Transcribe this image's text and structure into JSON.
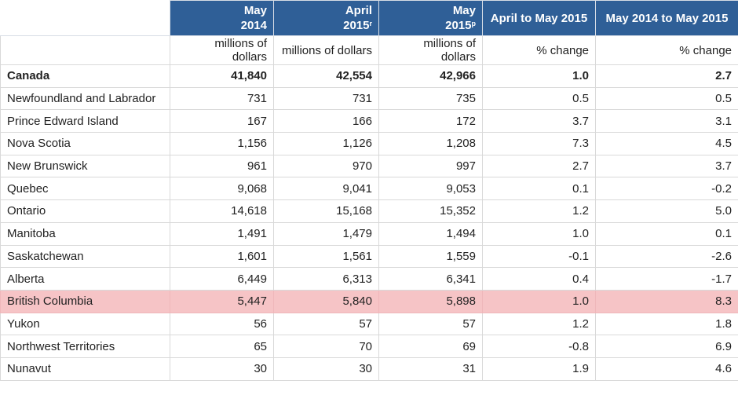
{
  "table": {
    "headers": [
      {
        "line1": "",
        "line2": "",
        "sup": ""
      },
      {
        "line1": "May",
        "line2": "2014",
        "sup": ""
      },
      {
        "line1": "April",
        "line2": "2015",
        "sup": "r"
      },
      {
        "line1": "May",
        "line2": "2015",
        "sup": "p"
      },
      {
        "line1": "April to May 2015",
        "line2": "",
        "sup": ""
      },
      {
        "line1": "May 2014 to May 2015",
        "line2": "",
        "sup": ""
      }
    ],
    "units": [
      "",
      "millions of dollars",
      "millions of dollars",
      "millions of dollars",
      "% change",
      "% change"
    ],
    "rows": [
      {
        "cells": [
          "Canada",
          "41,840",
          "42,554",
          "42,966",
          "1.0",
          "2.7"
        ]
      },
      {
        "cells": [
          "Newfoundland and Labrador",
          "731",
          "731",
          "735",
          "0.5",
          "0.5"
        ]
      },
      {
        "cells": [
          "Prince Edward Island",
          "167",
          "166",
          "172",
          "3.7",
          "3.1"
        ]
      },
      {
        "cells": [
          "Nova Scotia",
          "1,156",
          "1,126",
          "1,208",
          "7.3",
          "4.5"
        ]
      },
      {
        "cells": [
          "New Brunswick",
          "961",
          "970",
          "997",
          "2.7",
          "3.7"
        ]
      },
      {
        "cells": [
          "Quebec",
          "9,068",
          "9,041",
          "9,053",
          "0.1",
          "-0.2"
        ]
      },
      {
        "cells": [
          "Ontario",
          "14,618",
          "15,168",
          "15,352",
          "1.2",
          "5.0"
        ]
      },
      {
        "cells": [
          "Manitoba",
          "1,491",
          "1,479",
          "1,494",
          "1.0",
          "0.1"
        ]
      },
      {
        "cells": [
          "Saskatchewan",
          "1,601",
          "1,561",
          "1,559",
          "-0.1",
          "-2.6"
        ]
      },
      {
        "cells": [
          "Alberta",
          "6,449",
          "6,313",
          "6,341",
          "0.4",
          "-1.7"
        ]
      },
      {
        "cells": [
          "British Columbia",
          "5,447",
          "5,840",
          "5,898",
          "1.0",
          "8.3"
        ]
      },
      {
        "cells": [
          "Yukon",
          "56",
          "57",
          "57",
          "1.2",
          "1.8"
        ]
      },
      {
        "cells": [
          "Northwest Territories",
          "65",
          "70",
          "69",
          "-0.8",
          "6.9"
        ]
      },
      {
        "cells": [
          "Nunavut",
          "30",
          "30",
          "31",
          "1.9",
          "4.6"
        ]
      }
    ],
    "highlight_color": "#f6c4c6",
    "header_color": "#2f5f97"
  }
}
